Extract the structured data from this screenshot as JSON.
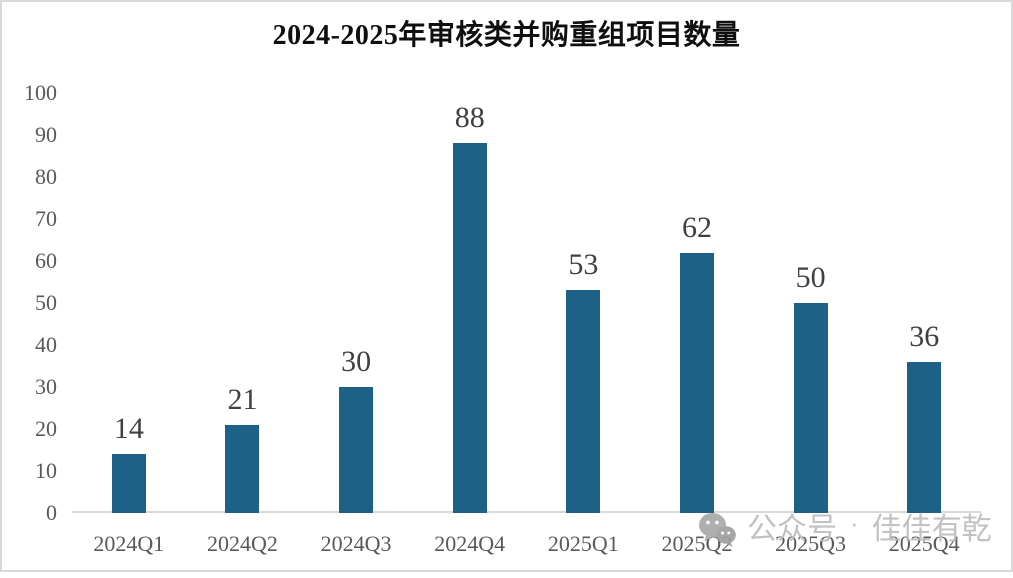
{
  "chart_data": {
    "type": "bar",
    "title": "2024-2025年审核类并购重组项目数量",
    "categories": [
      "2024Q1",
      "2024Q2",
      "2024Q3",
      "2024Q4",
      "2025Q1",
      "2025Q2",
      "2025Q3",
      "2025Q4"
    ],
    "values": [
      14,
      21,
      30,
      88,
      53,
      62,
      50,
      36
    ],
    "xlabel": "",
    "ylabel": "",
    "ylim": [
      0,
      100
    ],
    "yticks": [
      0,
      10,
      20,
      30,
      40,
      50,
      60,
      70,
      80,
      90,
      100
    ],
    "grid": false,
    "legend": "none",
    "value_labels_shown": true,
    "colors": {
      "bar": "#1d6187",
      "axis_line": "#d9d9d9",
      "tick_labels": "#595959",
      "value_labels": "#404040",
      "title": "#0f0f0f"
    }
  },
  "watermark": {
    "icon": "wechat-icon",
    "prefix": "公众号",
    "separator": "·",
    "account": "佳佳有乾",
    "color": "#bdbdbd"
  }
}
